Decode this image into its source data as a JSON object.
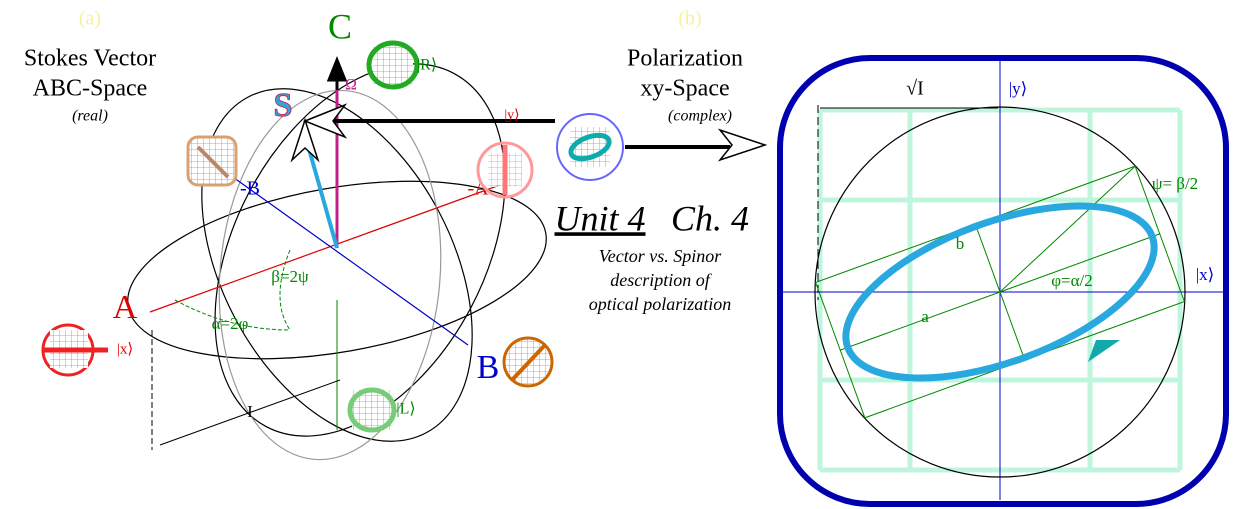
{
  "panel_a": {
    "label": "(a)",
    "title_line1": "Stokes Vector",
    "title_line2": "ABC-Space",
    "subtitle": "(real)",
    "axis_c": "C",
    "axis_a": "A",
    "axis_b": "B",
    "axis_neg_a": "-A",
    "axis_neg_b": "-B",
    "vector_s": "S",
    "omega": "Ω",
    "state_r": "|R⟩",
    "state_l": "|L⟩",
    "state_x": "|x⟩",
    "state_y": "|y⟩",
    "beta": "β=2ψ",
    "alpha": "α=2φ",
    "intensity": "I"
  },
  "panel_b": {
    "label": "(b)",
    "title_line1": "Polarization",
    "title_line2": "xy-Space",
    "subtitle": "(complex)",
    "sqrt_i": "√I",
    "axis_y": "|y⟩",
    "axis_x": "|x⟩",
    "psi": "ψ= β/2",
    "phi": "φ=α/2",
    "semi_major": "a",
    "semi_minor": "b"
  },
  "center": {
    "unit": "Unit 4",
    "chapter": "Ch. 4",
    "line1": "Vector vs. Spinor",
    "line2": "description of",
    "line3": "optical polarization"
  }
}
